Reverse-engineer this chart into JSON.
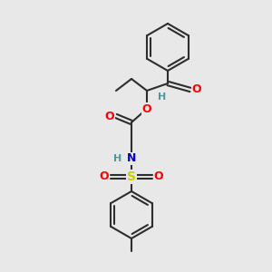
{
  "bg_color": "#e8e8e8",
  "bond_color": "#2d2d2d",
  "atom_colors": {
    "O": "#ff0000",
    "N": "#0000cc",
    "S": "#cccc00",
    "H": "#4d9999",
    "C": "#2d2d2d"
  },
  "figsize": [
    3.0,
    3.0
  ],
  "dpi": 100
}
